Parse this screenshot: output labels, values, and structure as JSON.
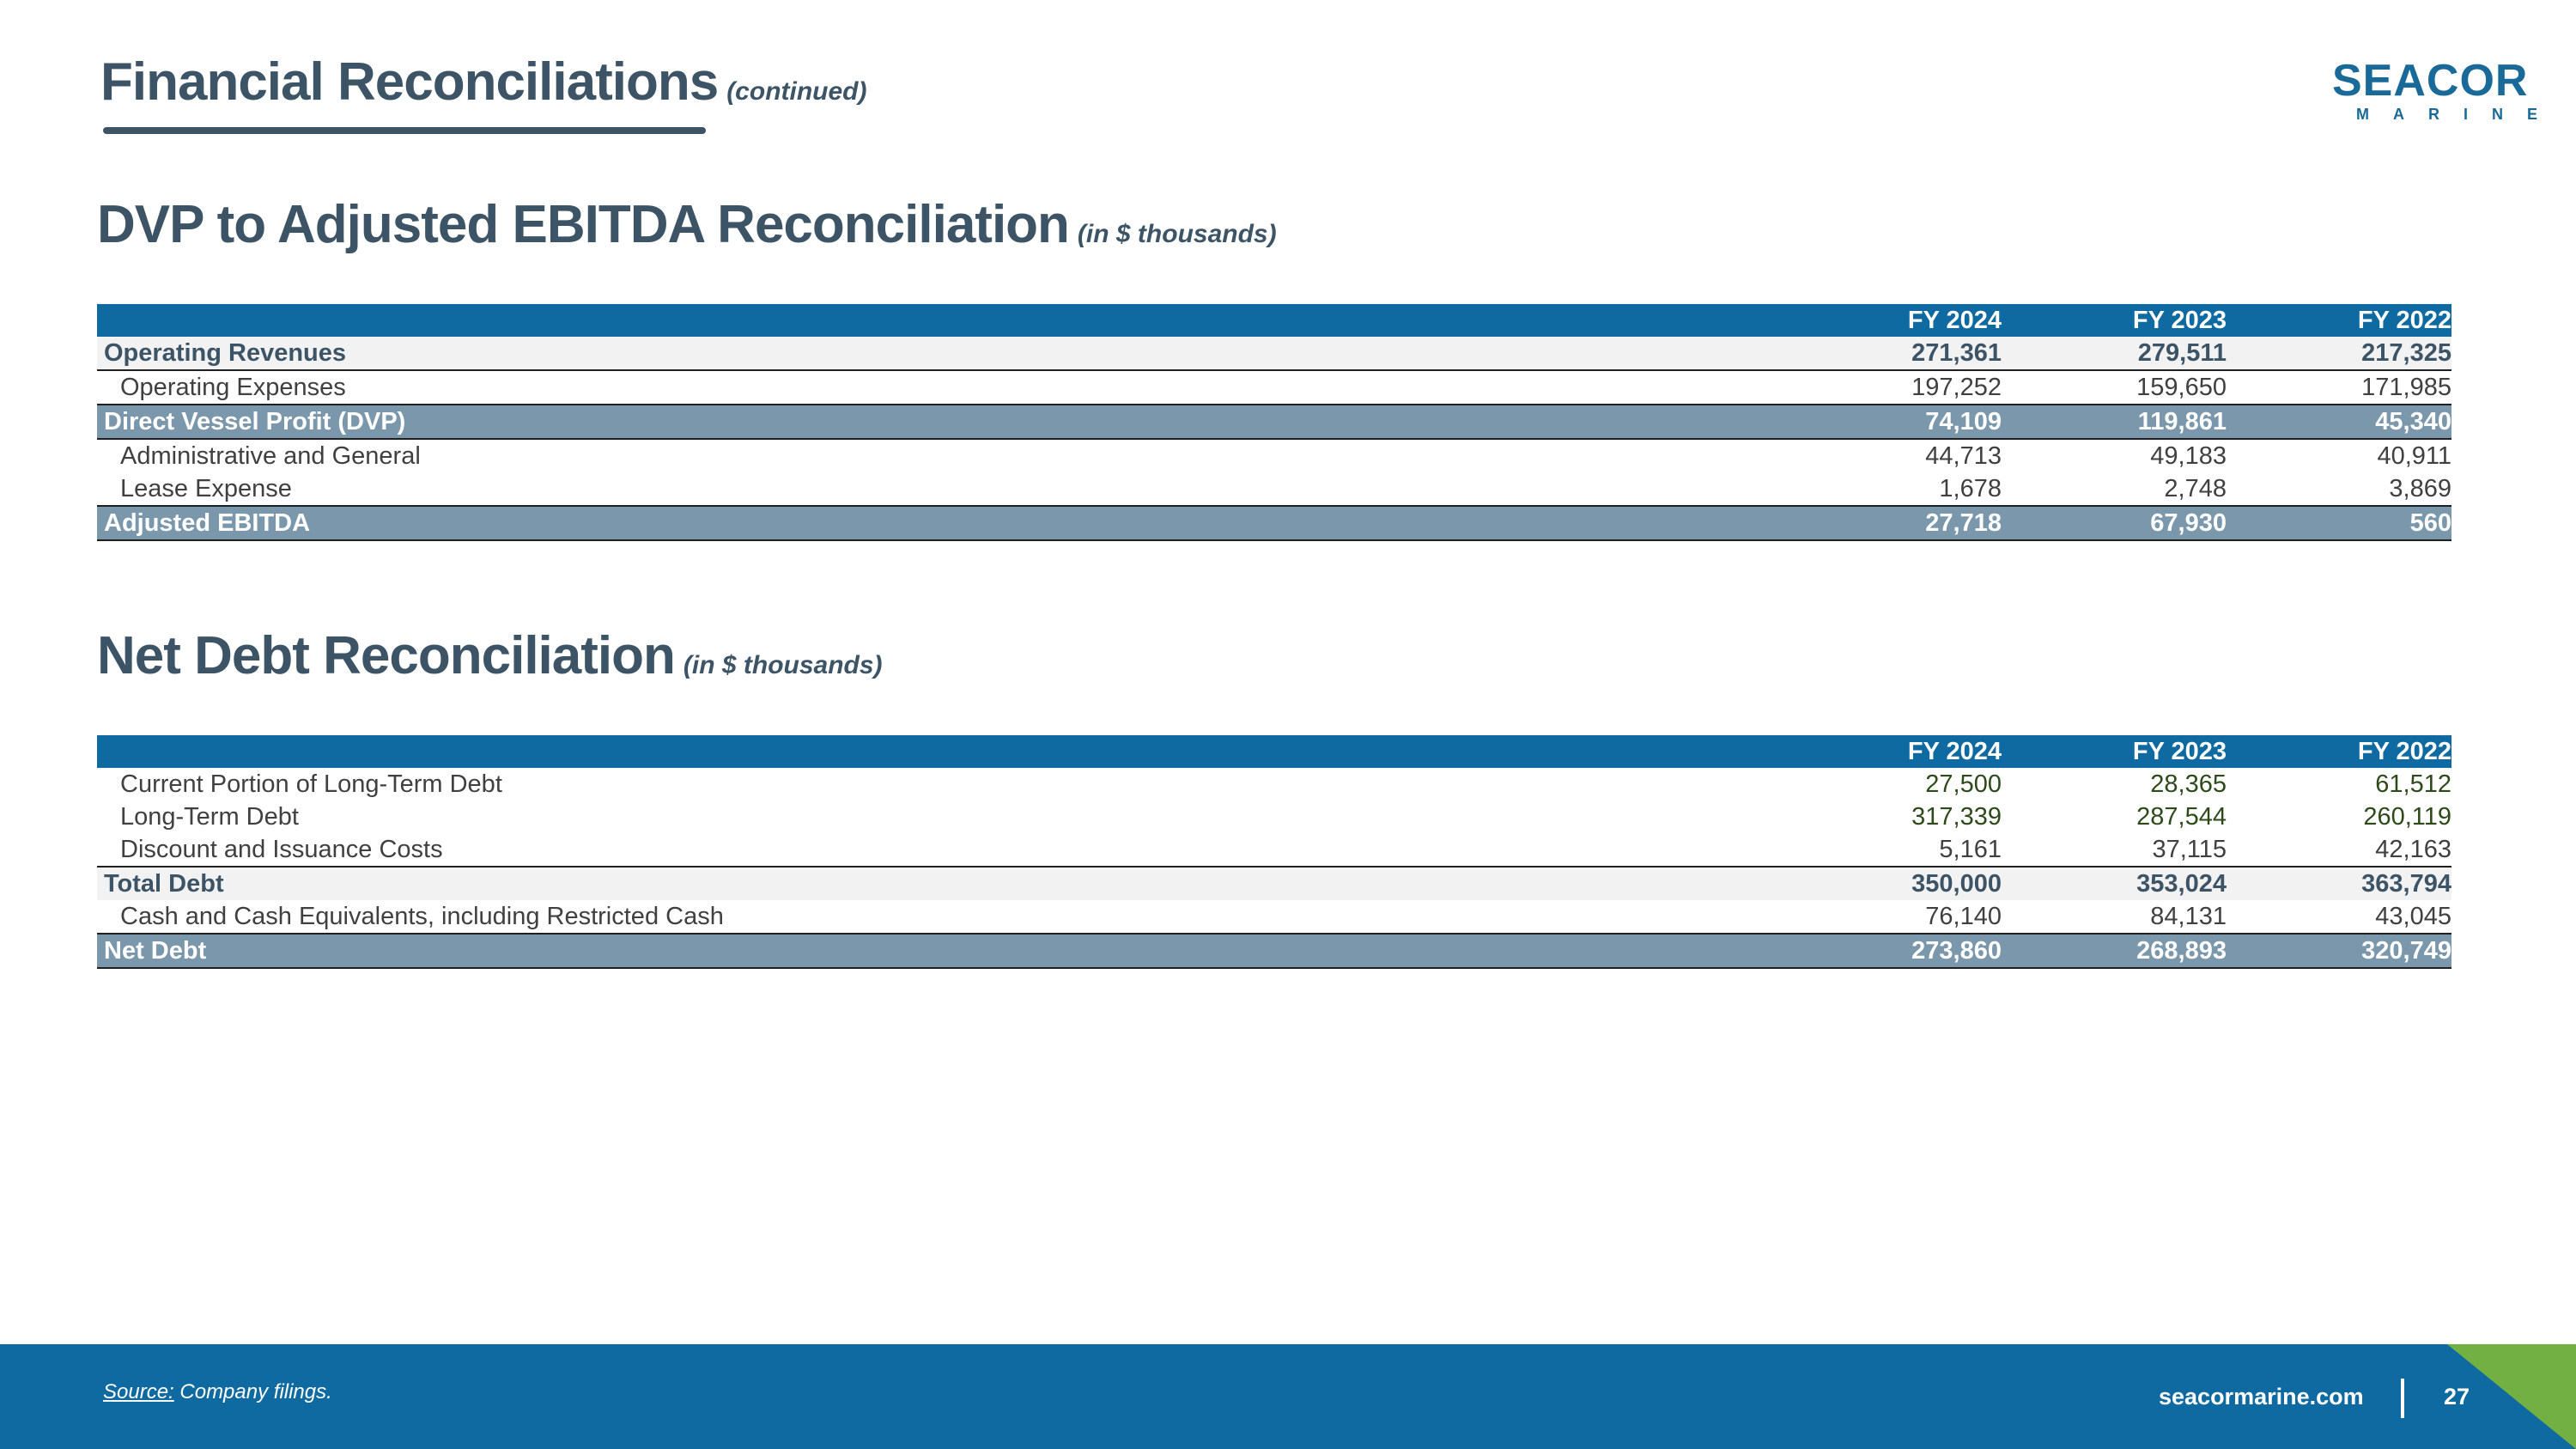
{
  "header": {
    "title": "Financial Reconciliations",
    "subtitle": "(continued)"
  },
  "logo": {
    "word": "SEACOR",
    "sub": "MARINE"
  },
  "dvp_section": {
    "title": "DVP to Adjusted EBITDA Reconciliation",
    "subtitle": "(in $ thousands)",
    "columns": [
      "FY 2024",
      "FY 2023",
      "FY 2022"
    ],
    "rows": [
      {
        "label": "Operating Revenues",
        "values": [
          "271,361",
          "279,511",
          "217,325"
        ]
      },
      {
        "label": "Operating Expenses",
        "values": [
          "197,252",
          "159,650",
          "171,985"
        ]
      },
      {
        "label": "Direct Vessel Profit (DVP)",
        "values": [
          "74,109",
          "119,861",
          "45,340"
        ]
      },
      {
        "label": "Administrative and General",
        "values": [
          "44,713",
          "49,183",
          "40,911"
        ]
      },
      {
        "label": "Lease Expense",
        "values": [
          "1,678",
          "2,748",
          "3,869"
        ]
      },
      {
        "label": "Adjusted EBITDA",
        "values": [
          "27,718",
          "67,930",
          "560"
        ]
      }
    ]
  },
  "debt_section": {
    "title": "Net Debt Reconciliation",
    "subtitle": "(in $ thousands)",
    "columns": [
      "FY 2024",
      "FY 2023",
      "FY 2022"
    ],
    "rows": [
      {
        "label": "Current Portion of Long-Term Debt",
        "values": [
          "27,500",
          "28,365",
          "61,512"
        ]
      },
      {
        "label": "Long-Term Debt",
        "values": [
          "317,339",
          "287,544",
          "260,119"
        ]
      },
      {
        "label": "Discount and Issuance Costs",
        "values": [
          "5,161",
          "37,115",
          "42,163"
        ]
      },
      {
        "label": "Total Debt",
        "values": [
          "350,000",
          "353,024",
          "363,794"
        ]
      },
      {
        "label": "Cash and Cash Equivalents, including Restricted Cash",
        "values": [
          "76,140",
          "84,131",
          "43,045"
        ]
      },
      {
        "label": "Net Debt",
        "values": [
          "273,860",
          "268,893",
          "320,749"
        ]
      }
    ]
  },
  "footer": {
    "source_label": "Source:",
    "source_text": " Company filings.",
    "website": "seacormarine.com",
    "page_number": "27"
  }
}
